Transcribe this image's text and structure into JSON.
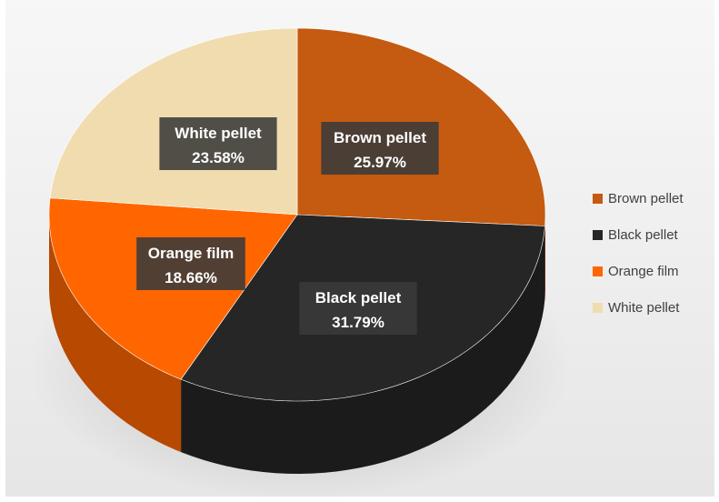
{
  "chart_data": {
    "type": "pie",
    "title": "",
    "categories": [
      "Brown pellet",
      "Black pellet",
      "Orange film",
      "White pellet"
    ],
    "values": [
      25.97,
      31.79,
      18.66,
      23.58
    ],
    "value_labels": [
      "25.97%",
      "31.79%",
      "18.66%",
      "23.58%"
    ],
    "colors": [
      "#c55a11",
      "#262626",
      "#ff6600",
      "#f0dcae"
    ],
    "start": "12 o'clock, clockwise",
    "style": "3D pie",
    "legend_position": "right"
  },
  "legend": {
    "items": [
      {
        "label": "Brown pellet",
        "color": "#c55a11"
      },
      {
        "label": "Black pellet",
        "color": "#262626"
      },
      {
        "label": "Orange film",
        "color": "#ff6600"
      },
      {
        "label": "White pellet",
        "color": "#f0dcae"
      }
    ]
  }
}
